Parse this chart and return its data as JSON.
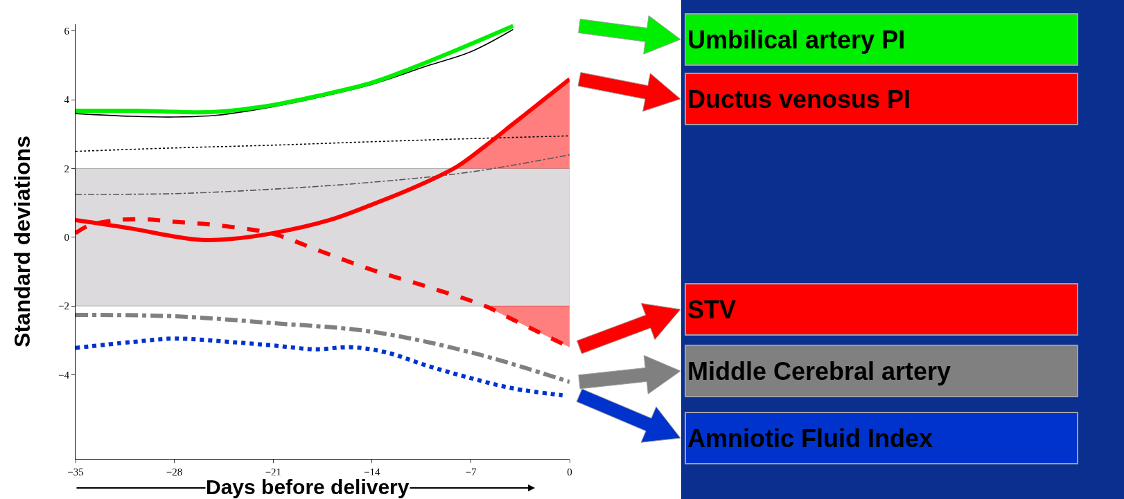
{
  "chart_data": {
    "type": "line",
    "xlabel": "Days before delivery",
    "ylabel": "Standard deviations",
    "xlim": [
      -35,
      0
    ],
    "xticks": [
      -35,
      -28,
      -21,
      -14,
      -7,
      0
    ],
    "ylim": [
      -6.45,
      6.2
    ],
    "yticks": [
      -4,
      -2,
      0,
      2,
      4,
      6
    ],
    "grid": false,
    "legend": "right",
    "bands": [
      {
        "axis": "y",
        "from": -2,
        "to": 2,
        "color": "#dcdadd"
      }
    ],
    "series": [
      {
        "color": "#000000",
        "line_style": "solid",
        "x": [
          -35,
          -31,
          -28,
          -25,
          -21,
          -18,
          -14,
          -10,
          -7,
          -4
        ],
        "values": [
          3.6,
          3.52,
          3.5,
          3.55,
          3.8,
          4.05,
          4.45,
          5.0,
          5.4,
          6.05
        ]
      },
      {
        "color": "#000000",
        "line_style": "dotted",
        "x": [
          -35,
          -28,
          -21,
          -14,
          -7,
          0
        ],
        "values": [
          2.5,
          2.6,
          2.68,
          2.78,
          2.87,
          2.95
        ]
      },
      {
        "color": "#555555",
        "line_style": "dashdot",
        "x": [
          -35,
          -28,
          -21,
          -14,
          -7,
          0
        ],
        "values": [
          1.25,
          1.27,
          1.4,
          1.6,
          1.9,
          2.4
        ]
      },
      {
        "name": "Umbilical artery PI",
        "color": "#00ee00",
        "line_style": "solid",
        "x": [
          -35,
          -31,
          -28,
          -25,
          -21,
          -18,
          -14,
          -11,
          -8,
          -4
        ],
        "values": [
          3.68,
          3.68,
          3.65,
          3.65,
          3.85,
          4.1,
          4.5,
          4.95,
          5.45,
          6.15
        ]
      },
      {
        "name": "Ductus venosus PI",
        "color": "#ff0000",
        "line_style": "solid",
        "x": [
          -35,
          -31,
          -28,
          -26,
          -24,
          -21,
          -17,
          -14,
          -11,
          -8,
          -6,
          -4,
          -2,
          0
        ],
        "values": [
          0.5,
          0.25,
          0.02,
          -0.08,
          -0.05,
          0.12,
          0.5,
          0.95,
          1.45,
          2.05,
          2.65,
          3.3,
          3.95,
          4.6
        ],
        "lower": [
          null,
          null,
          null,
          null,
          null,
          null,
          null,
          null,
          null,
          2,
          2,
          2,
          2,
          2
        ],
        "upper": [
          null,
          null,
          null,
          null,
          null,
          null,
          null,
          null,
          null,
          2.05,
          2.65,
          3.3,
          3.95,
          4.6
        ]
      },
      {
        "name": "STV",
        "color": "#ff0000",
        "line_style": "dashed",
        "x": [
          -35,
          -34,
          -32,
          -30,
          -28,
          -25,
          -21,
          -18,
          -14,
          -10,
          -6,
          -4,
          -2,
          0
        ],
        "values": [
          0.12,
          0.35,
          0.5,
          0.52,
          0.45,
          0.35,
          0.1,
          -0.35,
          -0.95,
          -1.45,
          -2.0,
          -2.4,
          -2.8,
          -3.2
        ],
        "lower": [
          null,
          null,
          null,
          null,
          null,
          null,
          null,
          null,
          null,
          null,
          -2.0,
          -2.4,
          -2.8,
          -3.2
        ],
        "upper": [
          null,
          null,
          null,
          null,
          null,
          null,
          null,
          null,
          null,
          null,
          -2,
          -2,
          -2,
          -2
        ]
      },
      {
        "name": "Middle Cerebral artery",
        "color": "#808080",
        "line_style": "dashdot",
        "x": [
          -35,
          -28,
          -21,
          -14,
          -7,
          0
        ],
        "values": [
          -2.26,
          -2.3,
          -2.5,
          -2.75,
          -3.35,
          -4.21
        ]
      },
      {
        "name": "Amniotic Fluid Index",
        "color": "#0033cc",
        "line_style": "dotted",
        "x": [
          -35,
          -31,
          -28,
          -24,
          -21,
          -18,
          -15.5,
          -13,
          -10,
          -7,
          -4,
          -0.5
        ],
        "values": [
          -3.22,
          -3.05,
          -2.95,
          -3.05,
          -3.15,
          -3.26,
          -3.2,
          -3.35,
          -3.75,
          -4.1,
          -4.4,
          -4.6
        ]
      }
    ]
  }
}
